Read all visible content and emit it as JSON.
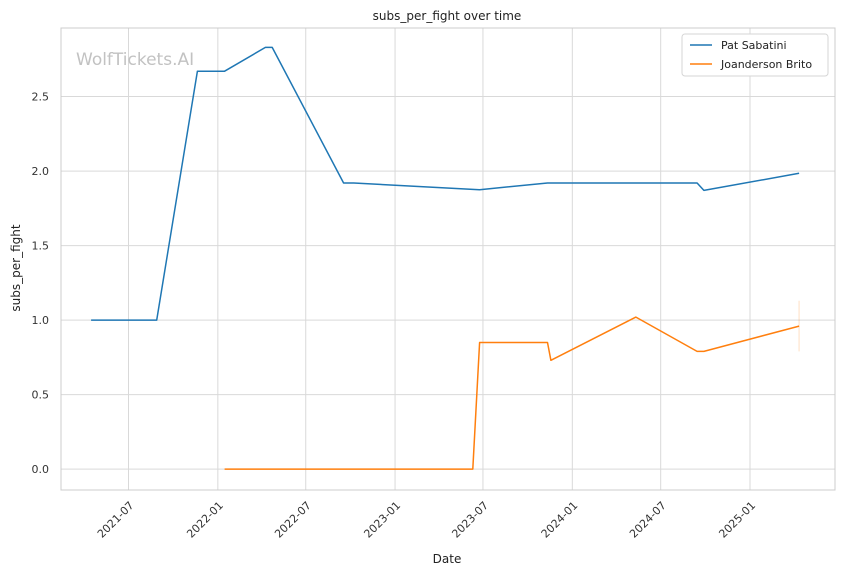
{
  "chart_data": {
    "type": "line",
    "title": "subs_per_fight over time",
    "xlabel": "Date",
    "ylabel": "subs_per_fight",
    "watermark": "WolfTickets.AI",
    "xlim": [
      "2021-02-12",
      "2025-06-25"
    ],
    "ylim": [
      -0.14,
      2.96
    ],
    "grid": true,
    "legend_position": "top-right",
    "x_ticks": [
      "2021-07",
      "2022-01",
      "2022-07",
      "2023-01",
      "2023-07",
      "2024-01",
      "2024-07",
      "2025-01"
    ],
    "y_ticks": [
      "0.0",
      "0.5",
      "1.0",
      "1.5",
      "2.0",
      "2.5"
    ],
    "series": [
      {
        "name": "Pat Sabatini",
        "color": "#1f77b4",
        "points": [
          {
            "x": "2021-04-15",
            "y": 1.0
          },
          {
            "x": "2021-08-28",
            "y": 1.0
          },
          {
            "x": "2021-11-20",
            "y": 2.67
          },
          {
            "x": "2022-01-15",
            "y": 2.67
          },
          {
            "x": "2022-04-09",
            "y": 2.83
          },
          {
            "x": "2022-04-23",
            "y": 2.83
          },
          {
            "x": "2022-09-17",
            "y": 1.92
          },
          {
            "x": "2022-10-08",
            "y": 1.92
          },
          {
            "x": "2023-06-24",
            "y": 1.875
          },
          {
            "x": "2023-11-11",
            "y": 1.92
          },
          {
            "x": "2024-09-14",
            "y": 1.92
          },
          {
            "x": "2024-09-28",
            "y": 1.87
          },
          {
            "x": "2025-04-12",
            "y": 1.985
          }
        ]
      },
      {
        "name": "Joanderson Brito",
        "color": "#ff7f0e",
        "points": [
          {
            "x": "2022-01-15",
            "y": 0.0
          },
          {
            "x": "2023-06-10",
            "y": 0.0
          },
          {
            "x": "2023-06-24",
            "y": 0.85
          },
          {
            "x": "2023-11-11",
            "y": 0.85
          },
          {
            "x": "2023-11-18",
            "y": 0.73
          },
          {
            "x": "2024-05-11",
            "y": 1.02
          },
          {
            "x": "2024-09-14",
            "y": 0.79
          },
          {
            "x": "2024-09-28",
            "y": 0.79
          },
          {
            "x": "2025-04-12",
            "y": 0.96
          }
        ]
      }
    ]
  }
}
